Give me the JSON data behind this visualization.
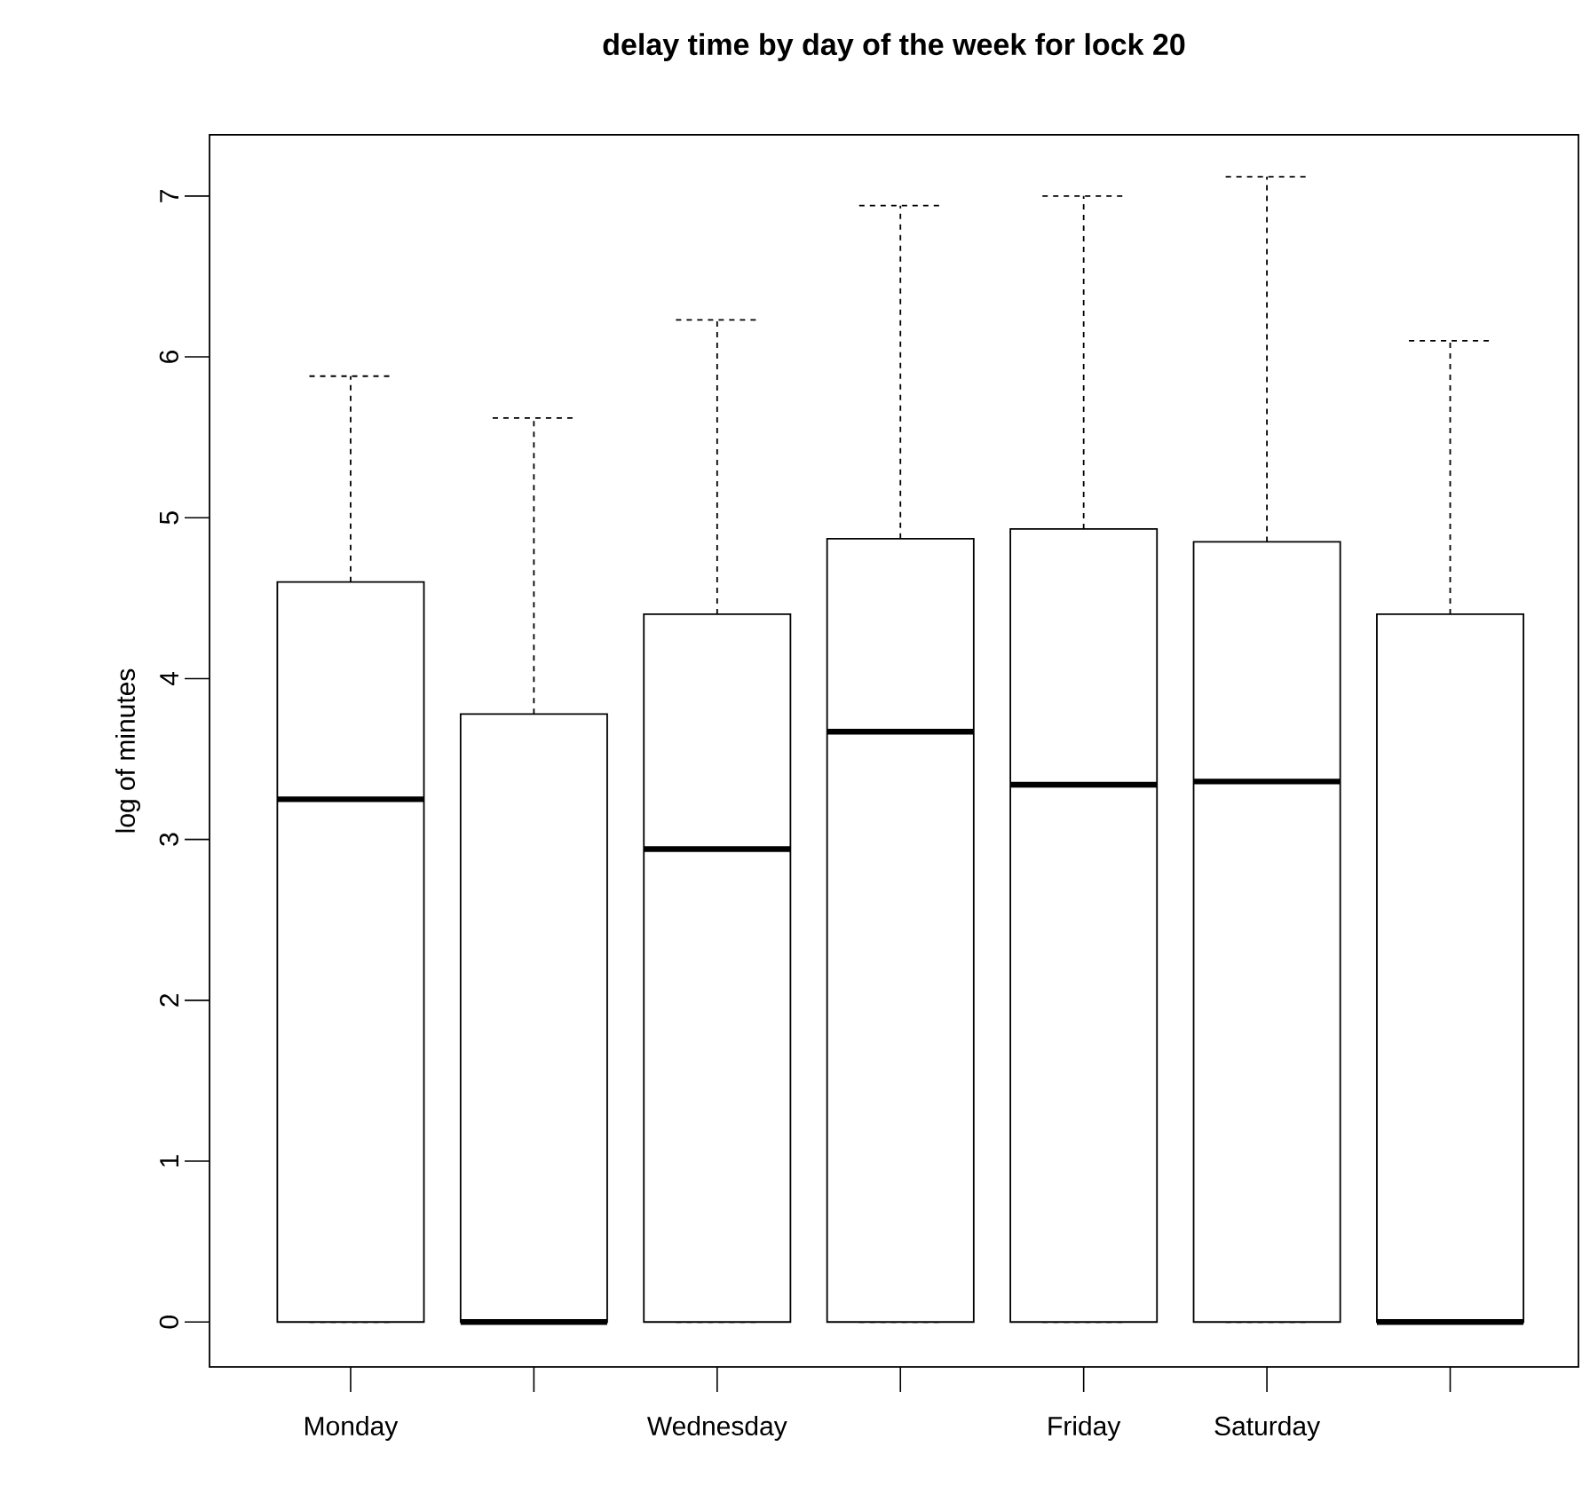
{
  "chart_data": {
    "type": "box",
    "title": "delay time by day of the week for lock 20",
    "ylabel": "log of minutes",
    "categories": [
      "Monday",
      null,
      "Wednesday",
      null,
      "Friday",
      "Saturday",
      null
    ],
    "boxes": [
      {
        "low": 0,
        "q1": 0,
        "median": 3.25,
        "q3": 4.6,
        "high": 5.88
      },
      {
        "low": 0,
        "q1": 0,
        "median": 0,
        "q3": 3.78,
        "high": 5.62
      },
      {
        "low": 0,
        "q1": 0,
        "median": 2.94,
        "q3": 4.4,
        "high": 6.23
      },
      {
        "low": 0,
        "q1": 0,
        "median": 3.67,
        "q3": 4.87,
        "high": 6.94
      },
      {
        "low": 0,
        "q1": 0,
        "median": 3.34,
        "q3": 4.93,
        "high": 7.0
      },
      {
        "low": 0,
        "q1": 0,
        "median": 3.36,
        "q3": 4.85,
        "high": 7.12
      },
      {
        "low": 0,
        "q1": 0,
        "median": 0,
        "q3": 4.4,
        "high": 6.1
      }
    ],
    "ylim": [
      -0.28,
      7.38
    ],
    "yticks": [
      0,
      1,
      2,
      3,
      4,
      5,
      6,
      7
    ]
  }
}
